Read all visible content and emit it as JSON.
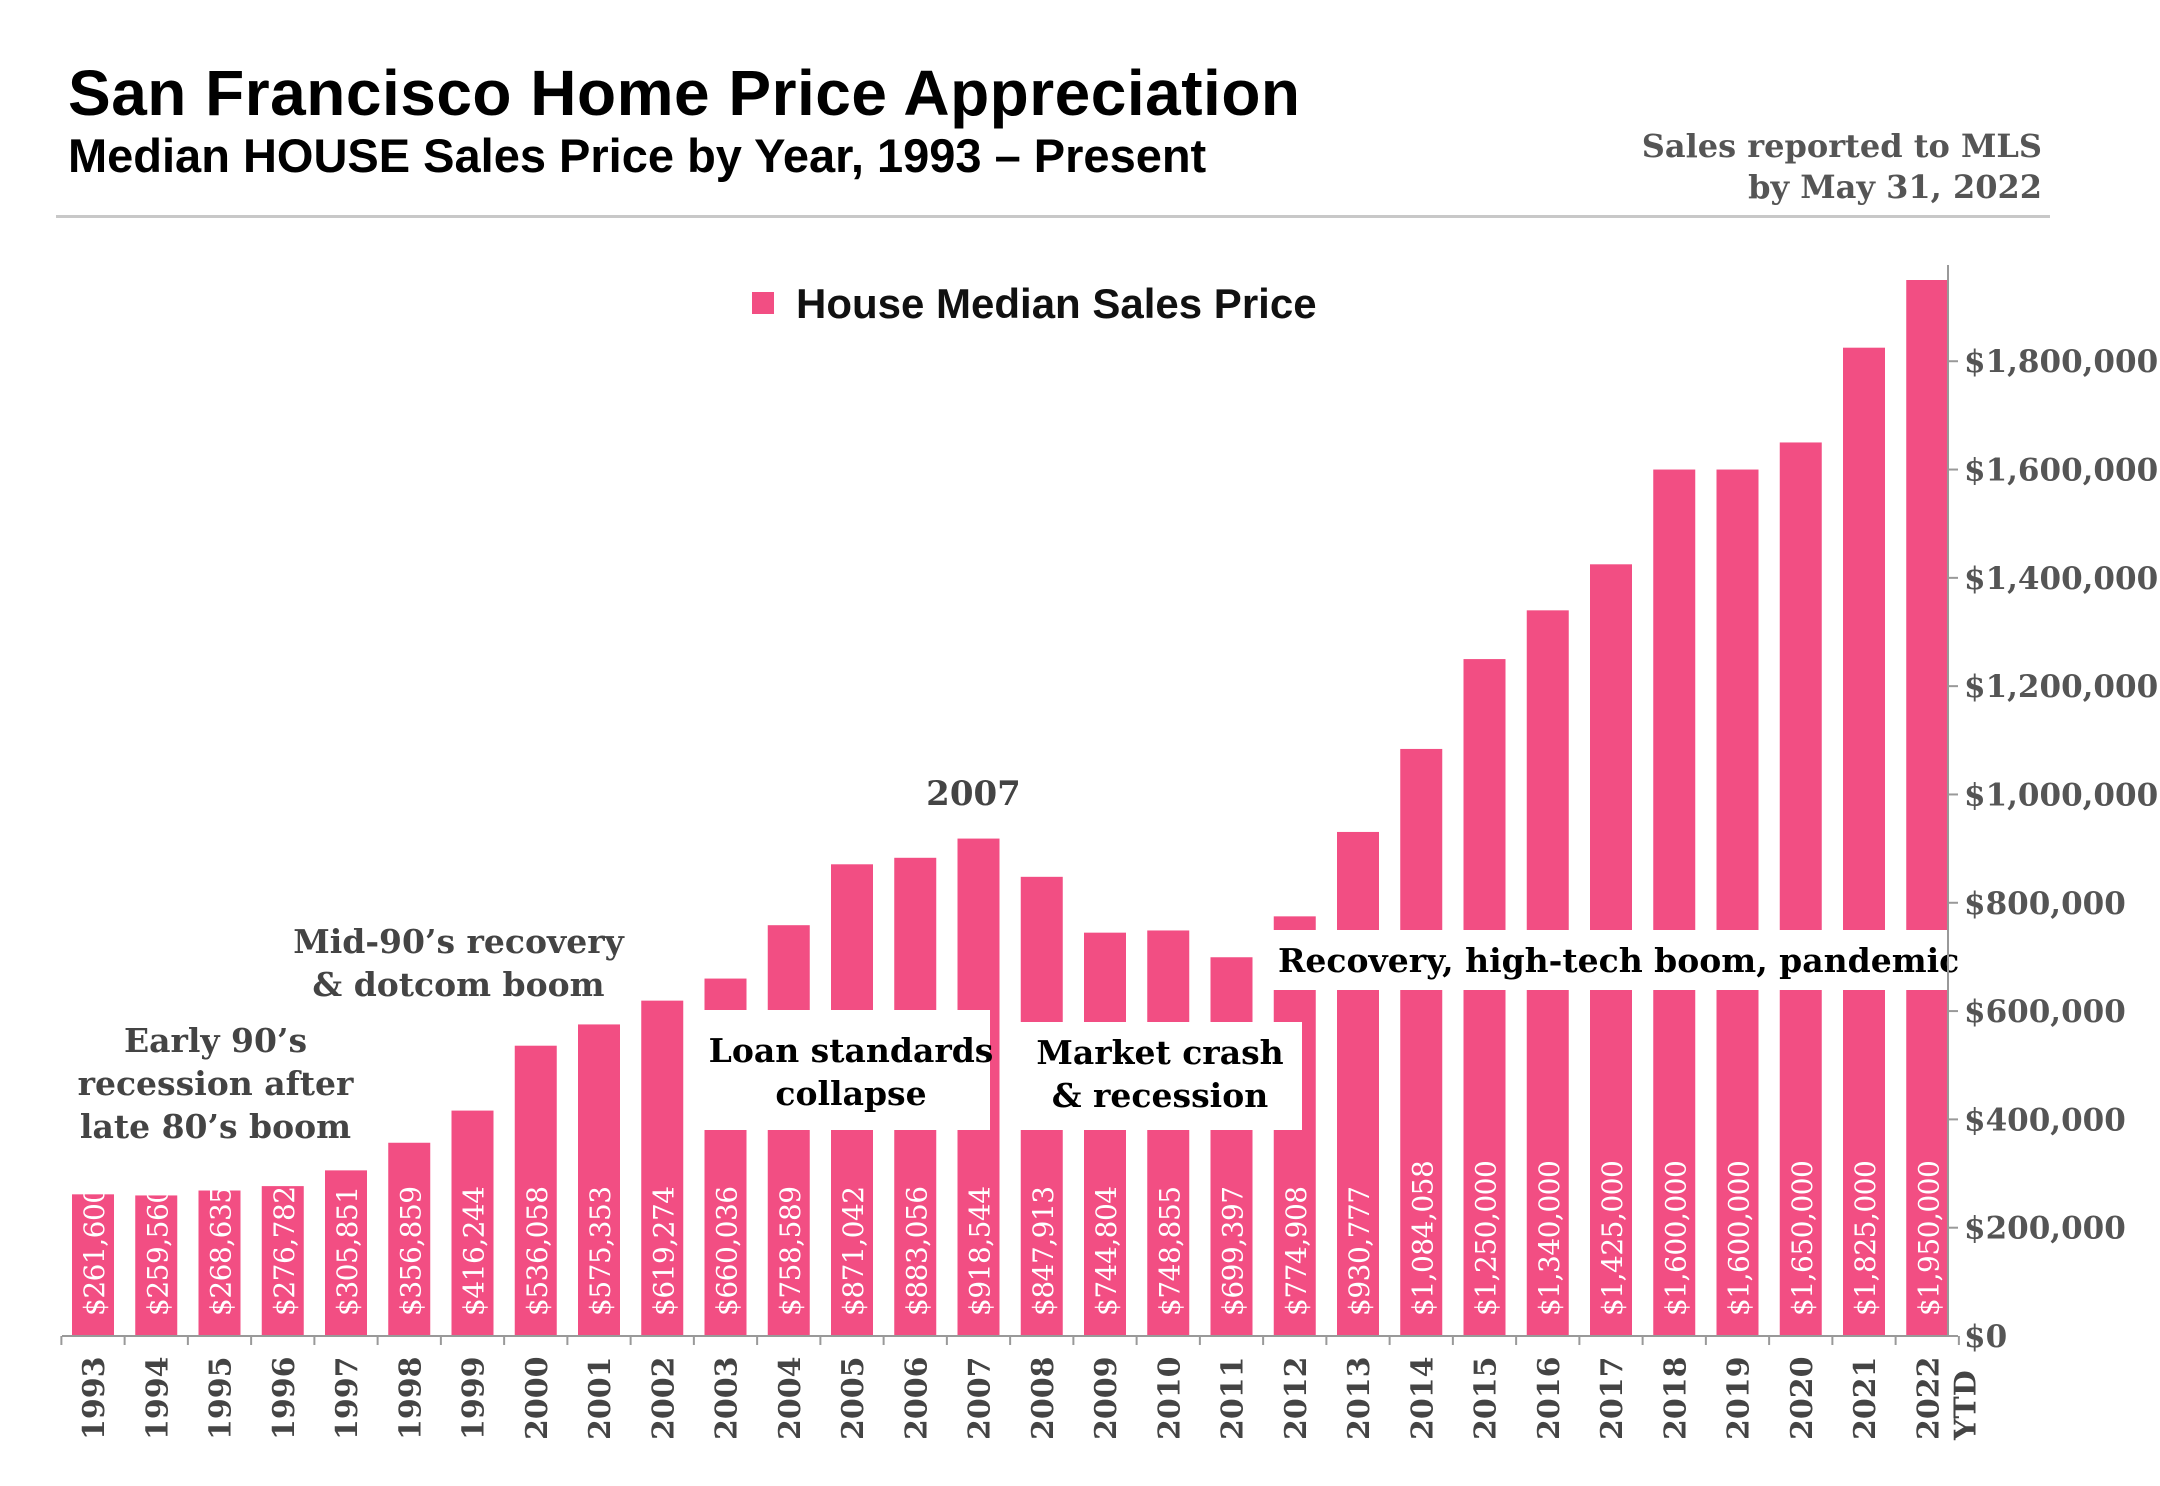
{
  "header": {
    "title": "San Francisco Home Price Appreciation",
    "subtitle": "Median HOUSE Sales Price by Year, 1993 –  Present",
    "note_line1": "Sales reported to MLS",
    "note_line2": "by May 31, 2022"
  },
  "chart_data": {
    "type": "bar",
    "categories": [
      "1993",
      "1994",
      "1995",
      "1996",
      "1997",
      "1998",
      "1999",
      "2000",
      "2001",
      "2002",
      "2003",
      "2004",
      "2005",
      "2006",
      "2007",
      "2008",
      "2009",
      "2010",
      "2011",
      "2012",
      "2013",
      "2014",
      "2015",
      "2016",
      "2017",
      "2018",
      "2019",
      "2020",
      "2021",
      "2022"
    ],
    "last_category_suffix": "YTD",
    "series": [
      {
        "name": "House Median Sales Price",
        "color": "#f24e83",
        "values": [
          261600,
          259560,
          268635,
          276782,
          305851,
          356859,
          416244,
          536058,
          575353,
          619274,
          660036,
          758589,
          871042,
          883056,
          918544,
          847913,
          744804,
          748855,
          699397,
          774908,
          930777,
          1084058,
          1250000,
          1340000,
          1425000,
          1600000,
          1600000,
          1650000,
          1825000,
          1950000
        ],
        "labels": [
          "$261,600",
          "$259,560",
          "$268,635",
          "$276,782",
          "$305,851",
          "$356,859",
          "$416,244",
          "$536,058",
          "$575,353",
          "$619,274",
          "$660,036",
          "$758,589",
          "$871,042",
          "$883,056",
          "$918,544",
          "$847,913",
          "$744,804",
          "$748,855",
          "$699,397",
          "$774,908",
          "$930,777",
          "$1,084,058",
          "$1,250,000",
          "$1,340,000",
          "$1,425,000",
          "$1,600,000",
          "$1,600,000",
          "$1,650,000",
          "$1,825,000",
          "$1,950,000"
        ]
      }
    ],
    "y_axis": {
      "position": "right",
      "ylim": [
        0,
        1950000
      ],
      "ticks": [
        0,
        200000,
        400000,
        600000,
        800000,
        1000000,
        1200000,
        1400000,
        1600000,
        1800000
      ],
      "tick_labels": [
        "$0",
        "$200,000",
        "$400,000",
        "$600,000",
        "$800,000",
        "$1,000,000",
        "$1,200,000",
        "$1,400,000",
        "$1,600,000",
        "$1,800,000"
      ]
    },
    "grid": false,
    "legend": {
      "placement": "top-center",
      "label": "House Median Sales Price"
    },
    "annotations": [
      {
        "id": "early90s",
        "lines": [
          "Early 90’s",
          "recession after",
          "late 80’s boom"
        ],
        "anchor_year": "1995",
        "boxed": false
      },
      {
        "id": "mid90s",
        "lines": [
          "Mid-90’s recovery",
          "& dotcom boom"
        ],
        "anchor_year": "1999",
        "boxed": false
      },
      {
        "id": "peak2007",
        "lines": [
          "2007"
        ],
        "anchor_year": "2007",
        "boxed": false
      },
      {
        "id": "loan",
        "lines": [
          "Loan standards",
          "collapse"
        ],
        "anchor_year": "2005",
        "boxed": true
      },
      {
        "id": "crash",
        "lines": [
          "Market crash",
          "& recession"
        ],
        "anchor_year": "2010",
        "boxed": true
      },
      {
        "id": "recovery",
        "lines": [
          "Recovery, high-tech boom, pandemic"
        ],
        "anchor_year": "2017",
        "boxed": true
      }
    ]
  }
}
